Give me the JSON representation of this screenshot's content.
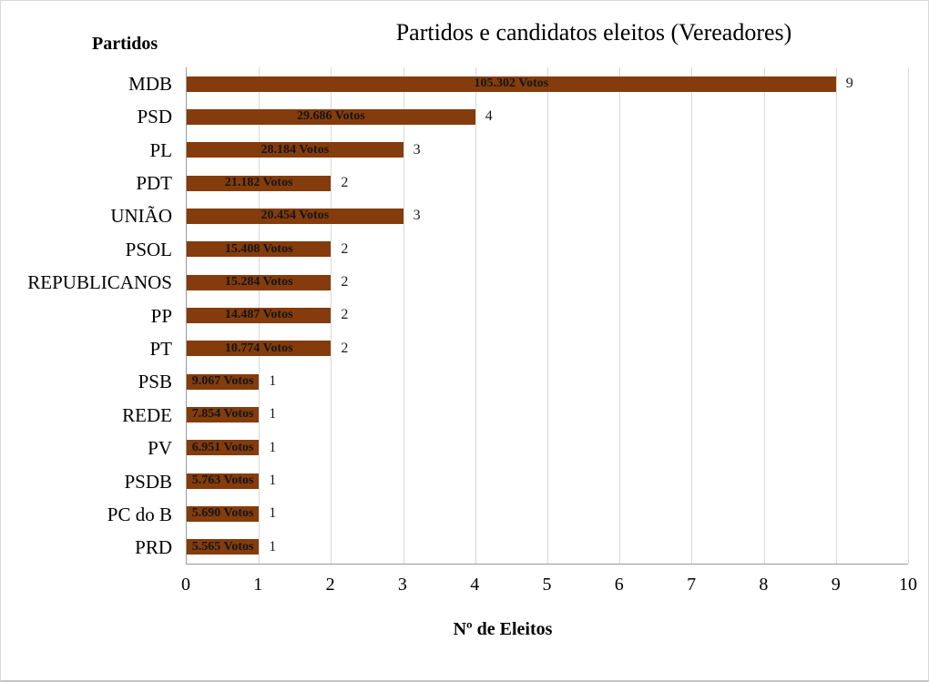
{
  "page": {
    "background": "#ffffff",
    "frame_border_color": "#d9d9d9"
  },
  "chart_data": {
    "type": "bar",
    "orientation": "horizontal",
    "title": "Partidos e candidatos eleitos (Vereadores)",
    "y_axis_title": "Partidos",
    "x_axis_title": "Nº de Eleitos",
    "categories": [
      "MDB",
      "PSD",
      "PL",
      "PDT",
      "UNIÃO",
      "PSOL",
      "REPUBLICANOS",
      "PP",
      "PT",
      "PSB",
      "REDE",
      "PV",
      "PSDB",
      "PC do B",
      "PRD"
    ],
    "values": [
      9,
      4,
      3,
      2,
      3,
      2,
      2,
      2,
      2,
      1,
      1,
      1,
      1,
      1,
      1
    ],
    "elected_labels": [
      "9",
      "4",
      "3",
      "2",
      "3",
      "2",
      "2",
      "2",
      "2",
      "1",
      "1",
      "1",
      "1",
      "1",
      "1"
    ],
    "bar_labels": [
      "105.302 Votos",
      "29.686 Votos",
      "28.184 Votos",
      "21.182 Votos",
      "20.454 Votos",
      "15.408 Votos",
      "15.284 Votos",
      "14.487 Votos",
      "10.774 Votos",
      "9.067 Votos",
      "7.854 Votos",
      "6.951 Votos",
      "5.763 Votos",
      "5.690 Votos",
      "5.565 Votos"
    ],
    "xlim": [
      0,
      10
    ],
    "xticks": [
      "0",
      "1",
      "2",
      "3",
      "4",
      "5",
      "6",
      "7",
      "8",
      "9",
      "10"
    ],
    "grid": true,
    "legend": "none",
    "colors": {
      "bar": "#843C0C",
      "bar_label_text": "#151515",
      "gridline": "#D9D9D9",
      "axis_line": "#999999",
      "text": "#000000"
    }
  }
}
